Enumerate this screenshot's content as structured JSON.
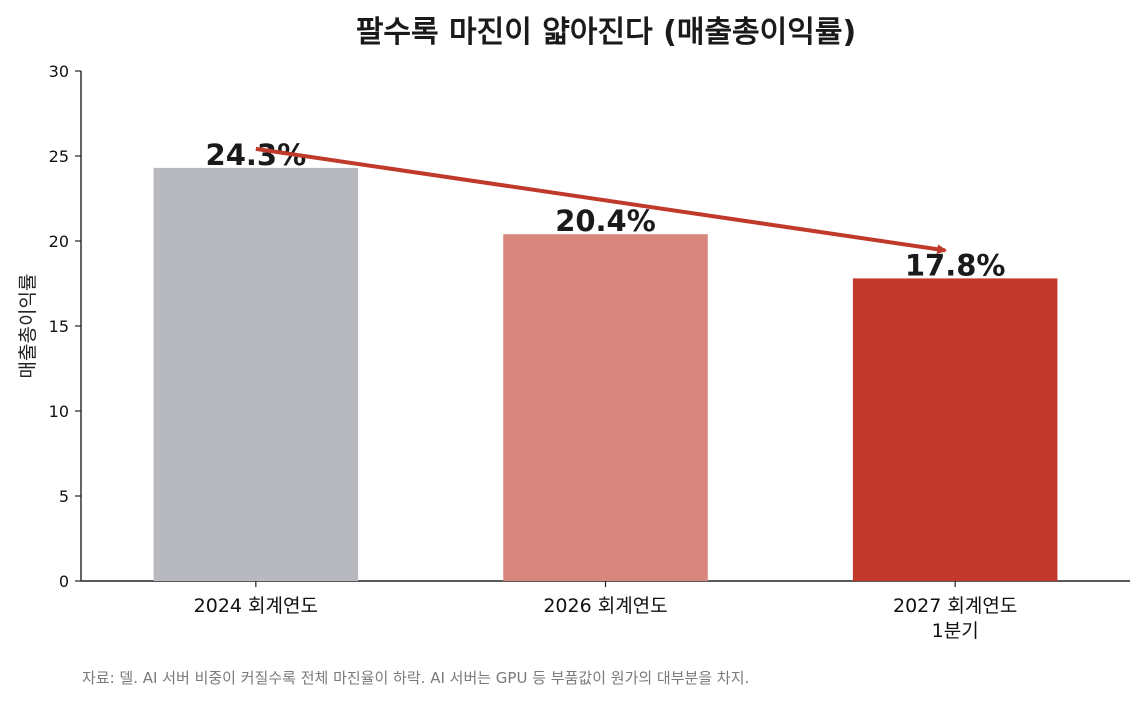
{
  "chart_data": {
    "type": "bar",
    "title": "팔수록 마진이 얇아진다 (매출총이익률)",
    "ylabel": "매출총이익률",
    "xlabel": "",
    "ylim": [
      0,
      30
    ],
    "yticks": [
      0,
      5,
      10,
      15,
      20,
      25,
      30
    ],
    "categories": [
      [
        "2024 회계연도"
      ],
      [
        "2026 회계연도"
      ],
      [
        "2027 회계연도",
        "1분기"
      ]
    ],
    "values": [
      24.3,
      20.4,
      17.8
    ],
    "data_labels": [
      "24.3%",
      "20.4%",
      "17.8%"
    ],
    "colors": [
      "#b8b9bf",
      "#d8877e",
      "#c0392b"
    ],
    "annotation": {
      "type": "trend-arrow",
      "color": "#c0392b"
    },
    "grid": false,
    "legend": "none",
    "note": "자료: 델. AI 서버 비중이 커질수록 전체 마진율이 하락. AI 서버는 GPU 등 부품값이 원가의 대부분을 차지."
  }
}
